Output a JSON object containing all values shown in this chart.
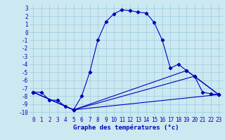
{
  "xlabel": "Graphe des températures (°c)",
  "xlim": [
    -0.5,
    23.5
  ],
  "ylim": [
    -10.5,
    3.5
  ],
  "xticks": [
    0,
    1,
    2,
    3,
    4,
    5,
    6,
    7,
    8,
    9,
    10,
    11,
    12,
    13,
    14,
    15,
    16,
    17,
    18,
    19,
    20,
    21,
    22,
    23
  ],
  "yticks": [
    3,
    2,
    1,
    0,
    -1,
    -2,
    -3,
    -4,
    -5,
    -6,
    -7,
    -8,
    -9,
    -10
  ],
  "bg_color": "#cce8f0",
  "grid_color": "#99cce0",
  "line_color": "#0000bb",
  "line1_x": [
    0,
    1,
    2,
    3,
    4,
    5,
    6,
    7,
    8,
    9,
    10,
    11,
    12,
    13,
    14,
    15,
    16,
    17,
    18,
    19,
    20,
    21,
    22,
    23
  ],
  "line1_y": [
    -7.5,
    -7.5,
    -8.5,
    -8.5,
    -9.3,
    -9.7,
    -8.0,
    -5.0,
    -1.0,
    1.3,
    2.3,
    2.8,
    2.7,
    2.5,
    2.4,
    1.2,
    -1.0,
    -4.5,
    -4.0,
    -4.8,
    -5.5,
    -7.5,
    -7.7,
    -7.8
  ],
  "line2_x": [
    0,
    5,
    23
  ],
  "line2_y": [
    -7.5,
    -9.7,
    -7.8
  ],
  "line3_x": [
    0,
    5,
    19,
    23
  ],
  "line3_y": [
    -7.5,
    -9.7,
    -4.8,
    -7.8
  ],
  "line4_x": [
    0,
    5,
    20,
    23
  ],
  "line4_y": [
    -7.5,
    -9.7,
    -5.5,
    -7.8
  ],
  "tick_fontsize": 5.5,
  "xlabel_fontsize": 6.5
}
